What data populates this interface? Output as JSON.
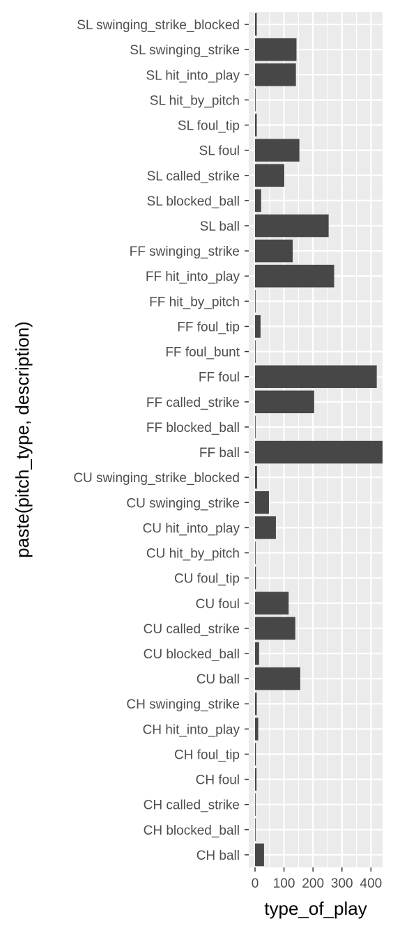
{
  "chart_data": {
    "type": "bar",
    "orientation": "horizontal",
    "xlabel": "type_of_play",
    "ylabel": "paste(pitch_type, description)",
    "xlim": [
      0,
      440
    ],
    "xticks": [
      "0",
      "100",
      "200",
      "300",
      "400"
    ],
    "grid": true,
    "legend": "none",
    "colors": {
      "panel": "#EBEBEB",
      "grid": "#FFFFFF",
      "bar": "#474747",
      "tick_text": "#4D4D4D"
    },
    "categories": [
      "SL swinging_strike_blocked",
      "SL swinging_strike",
      "SL hit_into_play",
      "SL hit_by_pitch",
      "SL foul_tip",
      "SL foul",
      "SL called_strike",
      "SL blocked_ball",
      "SL ball",
      "FF swinging_strike",
      "FF hit_into_play",
      "FF hit_by_pitch",
      "FF foul_tip",
      "FF foul_bunt",
      "FF foul",
      "FF called_strike",
      "FF blocked_ball",
      "FF ball",
      "CU swinging_strike_blocked",
      "CU swinging_strike",
      "CU hit_into_play",
      "CU hit_by_pitch",
      "CU foul_tip",
      "CU foul",
      "CU called_strike",
      "CU blocked_ball",
      "CU ball",
      "CH swinging_strike",
      "CH hit_into_play",
      "CH foul_tip",
      "CH foul",
      "CH called_strike",
      "CH blocked_ball",
      "CH ball"
    ],
    "values": [
      6,
      143,
      141,
      2,
      6,
      153,
      101,
      21,
      254,
      130,
      273,
      2,
      19,
      2,
      420,
      204,
      1,
      446,
      7,
      48,
      72,
      1,
      3,
      116,
      139,
      14,
      156,
      6,
      11,
      3,
      5,
      2,
      1,
      31
    ]
  }
}
